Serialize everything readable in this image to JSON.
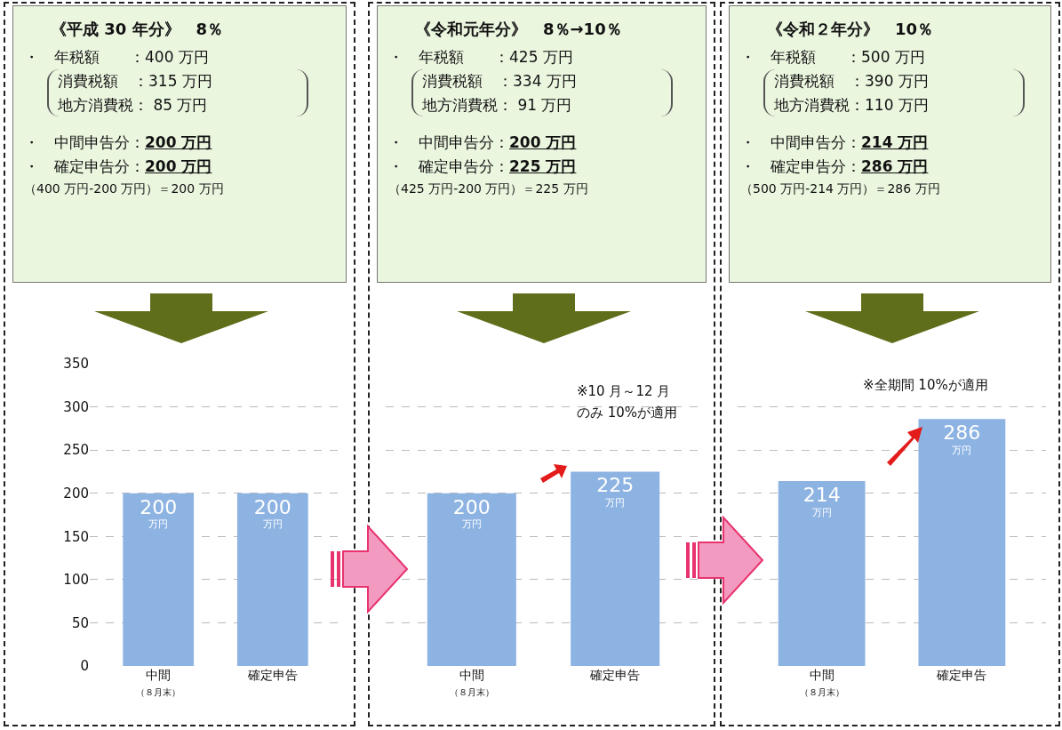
{
  "chart_data": [
    {
      "type": "bar",
      "title": "《平成 30 年分》　8％",
      "categories": [
        "中間（８月末）",
        "確定申告"
      ],
      "values": [
        200,
        200
      ],
      "value_labels": [
        "200\n万円",
        "200\n万円"
      ],
      "color": "#8db3e2",
      "ylim": [
        0,
        350
      ],
      "yticks": [
        0,
        50,
        100,
        150,
        200,
        250,
        300,
        350
      ],
      "grid": "y",
      "annotations": [
        "・　年税額　　：400 万円",
        "消費税額　：315 万円",
        "地方消費税：  85 万円",
        "・　中間申告分：200 万円",
        "・　確定申告分：200 万円",
        "（400 万円-200 万円）＝200 万円"
      ]
    },
    {
      "type": "bar",
      "title": "《令和元年分》　8％→10％",
      "categories": [
        "中間（８月末）",
        "確定申告"
      ],
      "values": [
        200,
        225
      ],
      "value_labels": [
        "200\n万円",
        "225\n万円"
      ],
      "color": "#8db3e2",
      "ylim": [
        0,
        350
      ],
      "yticks": [
        0,
        50,
        100,
        150,
        200,
        250,
        300,
        350
      ],
      "grid": "y",
      "tick_labels": "x",
      "annotations": [
        "・　年税額　　：425 万円",
        "消費税額　：334 万円",
        "地方消費税：  91 万円",
        "・　中間申告分：200 万円",
        "・　確定申告分：225 万円",
        "（425 万円-200 万円）＝225 万円",
        "※10 月～12 月",
        "のみ 10%が適用"
      ]
    },
    {
      "type": "bar",
      "title": "《令和２年分》　10％",
      "categories": [
        "中間（８月末）",
        "確定申告"
      ],
      "values": [
        214,
        286
      ],
      "value_labels": [
        "214\n万円",
        "286\n万円"
      ],
      "color": "#8db3e2",
      "ylim": [
        0,
        350
      ],
      "yticks": [
        0,
        50,
        100,
        150,
        200,
        250,
        300,
        350
      ],
      "grid": "y",
      "tick_labels": "x",
      "annotations": [
        "・　年税額　　：500 万円",
        "消費税額　：390 万円",
        "地方消費税：110 万円",
        "・　中間申告分：214 万円",
        "・　確定申告分：286 万円",
        "（500 万円-214 万円）＝286 万円",
        "※全期間 10%が適用"
      ]
    }
  ]
}
